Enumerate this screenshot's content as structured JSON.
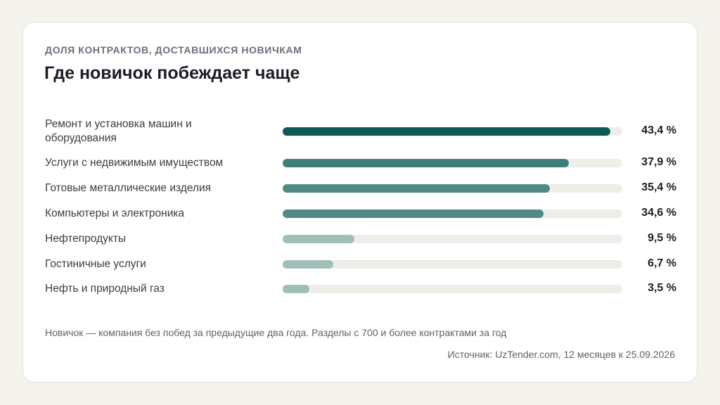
{
  "header": {
    "kicker": "ДОЛЯ КОНТРАКТОВ, ДОСТАВШИХСЯ НОВИЧКАМ",
    "title": "Где новичок побеждает чаще"
  },
  "chart_data": {
    "type": "bar",
    "orientation": "horizontal",
    "xlim": [
      0,
      45
    ],
    "unit": "%",
    "grid": false,
    "legend": "none",
    "colors": {
      "track": "#efede7",
      "high": "#0d5a55",
      "mid": "#3f7f7a",
      "mid_light": "#4f8a84",
      "low": "#9fbfb9"
    },
    "categories": [
      "Ремонт и установка машин и оборудования",
      "Услуги с недвижимым имуществом",
      "Готовые металлические изделия",
      "Компьютеры и электроника",
      "Нефтепродукты",
      "Гостиничные услуги",
      "Нефть и природный газ"
    ],
    "values": [
      43.4,
      37.9,
      35.4,
      34.6,
      9.5,
      6.7,
      3.5
    ],
    "value_labels": [
      "43,4 %",
      "37,9 %",
      "35,4 %",
      "34,6 %",
      "9,5 %",
      "6,7 %",
      "3,5 %"
    ],
    "bar_colors": [
      "#0d5a55",
      "#3f7f7a",
      "#4f8a84",
      "#4f8a84",
      "#9fbfb9",
      "#9fbfb9",
      "#9fbfb9"
    ]
  },
  "footer": {
    "note": "Новичок — компания без побед за предыдущие два года. Разделы с 700 и более контрактами за год",
    "source": "Источник: UzTender.com, 12 месяцев к 25.09.2026"
  }
}
